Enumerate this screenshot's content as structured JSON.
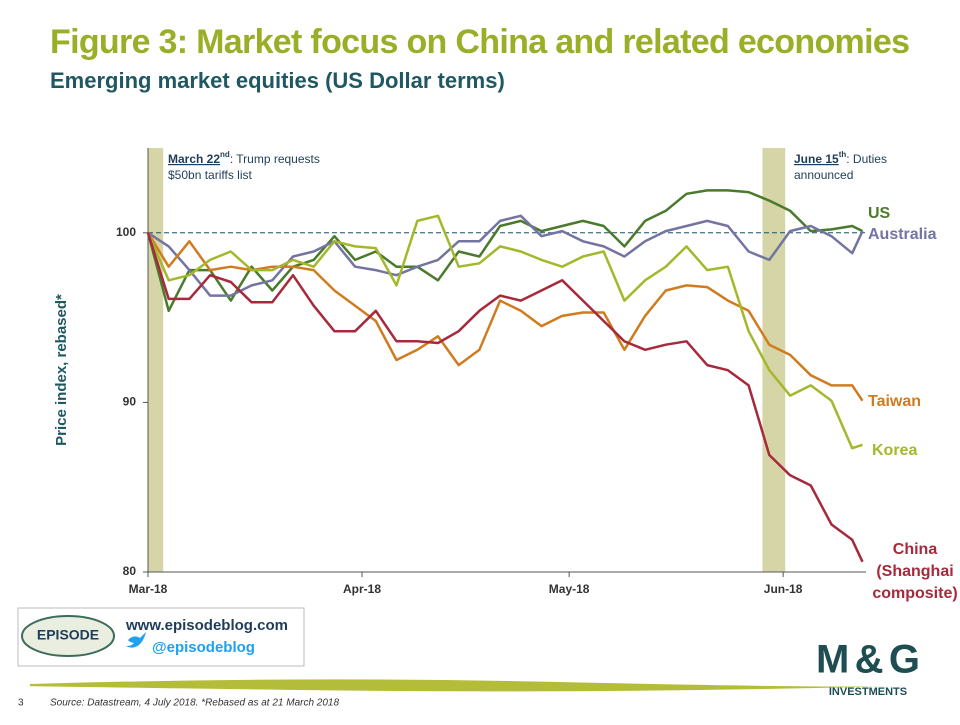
{
  "chart_data": {
    "type": "line",
    "title": "Figure 3: Market focus on China and related economies",
    "subtitle": "Emerging market equities (US Dollar terms)",
    "y_label": "Price index, rebased*",
    "x": [
      0,
      3,
      6,
      9,
      12,
      15,
      18,
      21,
      24,
      27,
      30,
      33,
      36,
      39,
      42,
      45,
      48,
      51,
      54,
      57,
      60,
      63,
      66,
      69,
      72,
      75,
      78,
      81,
      84,
      87,
      90,
      93,
      96,
      99,
      102,
      103.5
    ],
    "xlim": [
      0,
      104
    ],
    "xticks": [
      {
        "value": 0,
        "label": "Mar-18"
      },
      {
        "value": 31,
        "label": "Apr-18"
      },
      {
        "value": 61,
        "label": "May-18"
      },
      {
        "value": 92,
        "label": "Jun-18"
      }
    ],
    "ylim": [
      80,
      105
    ],
    "yticks": [
      80,
      90,
      100
    ],
    "reference_line": 100,
    "shaded_periods": [
      [
        0,
        2.2
      ],
      [
        89,
        92.3
      ]
    ],
    "annotations": [
      {
        "bold": "March 22",
        "sup": "nd",
        "text": ": Trump requests",
        "text2": "$50bn tariffs list"
      },
      {
        "bold": "June 15",
        "sup": "th",
        "text": ": Duties",
        "text2": "announced"
      }
    ],
    "series": [
      {
        "name": "US",
        "color": "#4a7a2c",
        "values": [
          100,
          95.4,
          97.8,
          97.8,
          96,
          98,
          96.6,
          98,
          98.4,
          99.8,
          98.4,
          98.9,
          98,
          98,
          97.2,
          98.9,
          98.6,
          100.4,
          100.7,
          100.1,
          100.4,
          100.7,
          100.4,
          99.2,
          100.7,
          101.3,
          102.3,
          102.5,
          102.5,
          102.4,
          101.9,
          101.3,
          100.1,
          100.2,
          100.4,
          100.1
        ]
      },
      {
        "name": "Australia",
        "color": "#7474a2",
        "values": [
          100,
          99.2,
          97.8,
          96.3,
          96.3,
          96.9,
          97.2,
          98.6,
          98.9,
          99.5,
          98,
          97.8,
          97.5,
          98,
          98.4,
          99.5,
          99.5,
          100.7,
          101,
          99.8,
          100.1,
          99.5,
          99.2,
          98.6,
          99.5,
          100.1,
          100.4,
          100.7,
          100.4,
          98.9,
          98.4,
          100.1,
          100.4,
          99.8,
          98.8,
          100.1
        ]
      },
      {
        "name": "Taiwan",
        "color": "#d07c1e",
        "values": [
          100,
          98,
          99.5,
          97.8,
          98,
          97.8,
          98,
          98,
          97.8,
          96.6,
          95.7,
          94.8,
          92.5,
          93.1,
          93.9,
          92.2,
          93.1,
          96,
          95.4,
          94.5,
          95.1,
          95.3,
          95.3,
          93.1,
          95.1,
          96.6,
          96.9,
          96.8,
          96,
          95.4,
          93.4,
          92.8,
          91.6,
          91,
          91,
          90.1
        ]
      },
      {
        "name": "Korea",
        "color": "#a4b82b",
        "values": [
          100,
          97.2,
          97.5,
          98.4,
          98.9,
          97.8,
          97.8,
          98.4,
          98,
          99.5,
          99.2,
          99.1,
          96.9,
          100.7,
          101,
          98,
          98.2,
          99.2,
          98.9,
          98.4,
          98,
          98.6,
          98.9,
          96,
          97.2,
          98,
          99.2,
          97.8,
          98,
          94.2,
          91.9,
          90.4,
          91,
          90.1,
          87.3,
          87.5
        ]
      },
      {
        "name": "China (Shanghai composite)",
        "color": "#a62a3b",
        "values": [
          100,
          96.1,
          96.1,
          97.5,
          97.1,
          95.9,
          95.9,
          97.5,
          95.7,
          94.2,
          94.2,
          95.4,
          93.6,
          93.6,
          93.5,
          94.2,
          95.4,
          96.3,
          96,
          96.6,
          97.2,
          96,
          94.8,
          93.6,
          93.1,
          93.4,
          93.6,
          92.2,
          91.9,
          91,
          86.9,
          85.7,
          85.1,
          82.8,
          81.9,
          80.6
        ]
      }
    ]
  },
  "footer": {
    "page": "3",
    "source": "Source: Datastream, 4 July 2018. *Rebased as at 21 March 2018",
    "url": "www.episodeblog.com",
    "twitter": "@episodeblog",
    "episode_logo": "EPISODE",
    "mg_logo": "M&G",
    "mg_sub": "INVESTMENTS"
  }
}
